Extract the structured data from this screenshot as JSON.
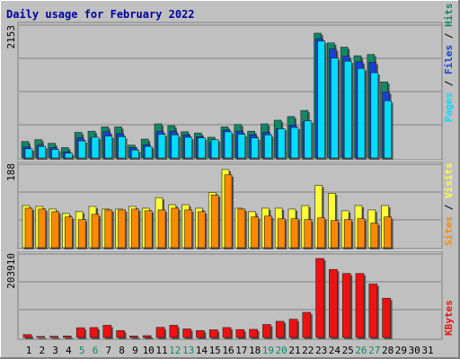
{
  "colors": {
    "background": "#C0C0C0",
    "plot_bg": "#C0C0C0",
    "border_dark": "#808080",
    "title": "#0000A0",
    "hits": "#118866",
    "files": "#1840D8",
    "pages": "#00DDFF",
    "visits": "#FFFF33",
    "sites": "#FF8800",
    "kbytes": "#EE1111",
    "weekend_label": "#118866",
    "weekday_label": "#000000"
  },
  "chart_data": [
    {
      "type": "bar",
      "title": "Daily usage for February 2022",
      "panel": "hits-files-pages",
      "ymax_label": "2153",
      "ylim": [
        0,
        2153
      ],
      "categories": [
        "1",
        "2",
        "3",
        "4",
        "5",
        "6",
        "7",
        "8",
        "9",
        "10",
        "11",
        "12",
        "13",
        "14",
        "15",
        "16",
        "17",
        "18",
        "19",
        "20",
        "21",
        "22",
        "23",
        "24",
        "25",
        "26",
        "27",
        "28",
        "29",
        "30",
        "31"
      ],
      "weekend": [
        "5",
        "6",
        "12",
        "13",
        "19",
        "20",
        "26",
        "27"
      ],
      "legend": [
        "Pages",
        "Files",
        "Hits"
      ],
      "series": [
        {
          "name": "Hits",
          "values": [
            270,
            300,
            240,
            170,
            420,
            440,
            510,
            510,
            210,
            310,
            560,
            530,
            430,
            410,
            340,
            510,
            550,
            440,
            560,
            620,
            680,
            780,
            2050,
            1890,
            1820,
            1680,
            1700,
            1250,
            0,
            0,
            0
          ]
        },
        {
          "name": "Files",
          "values": [
            180,
            210,
            170,
            100,
            330,
            330,
            430,
            400,
            170,
            220,
            440,
            440,
            380,
            350,
            250,
            460,
            440,
            380,
            420,
            480,
            540,
            590,
            1960,
            1790,
            1670,
            1580,
            1570,
            1080,
            0,
            0,
            0
          ]
        },
        {
          "name": "Pages",
          "values": [
            150,
            190,
            140,
            80,
            280,
            340,
            360,
            350,
            130,
            190,
            390,
            380,
            340,
            330,
            300,
            430,
            390,
            330,
            380,
            480,
            500,
            610,
            1920,
            1640,
            1590,
            1470,
            1400,
            940,
            0,
            0,
            0
          ]
        }
      ]
    },
    {
      "type": "bar",
      "panel": "visits-sites",
      "ymax_label": "188",
      "ylim": [
        0,
        188
      ],
      "legend": [
        "Sites",
        "Visits"
      ],
      "series": [
        {
          "name": "Visits",
          "values": [
            96,
            94,
            88,
            78,
            82,
            94,
            88,
            88,
            94,
            90,
            114,
            98,
            98,
            90,
            126,
            178,
            90,
            82,
            90,
            90,
            88,
            96,
            142,
            124,
            84,
            96,
            86,
            96,
            0,
            0,
            0
          ]
        },
        {
          "name": "Sites",
          "values": [
            90,
            88,
            82,
            70,
            64,
            76,
            86,
            86,
            88,
            84,
            86,
            90,
            86,
            82,
            120,
            166,
            88,
            70,
            72,
            66,
            66,
            64,
            68,
            62,
            64,
            66,
            56,
            70,
            0,
            0,
            0
          ]
        }
      ]
    },
    {
      "type": "bar",
      "panel": "kbytes",
      "ymax_label": "203910",
      "ylim": [
        0,
        203910
      ],
      "legend": [
        "KBytes"
      ],
      "series": [
        {
          "name": "KBytes",
          "values": [
            7000,
            2500,
            3000,
            3500,
            24000,
            24500,
            30000,
            17000,
            3500,
            4500,
            25000,
            30000,
            21000,
            17000,
            19000,
            24500,
            19500,
            20000,
            32000,
            40000,
            45000,
            62000,
            195000,
            168000,
            158000,
            158000,
            132000,
            97000,
            0,
            0,
            0
          ]
        }
      ]
    }
  ]
}
